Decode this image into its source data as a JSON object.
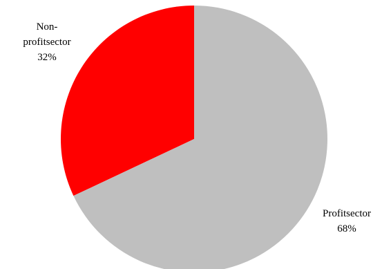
{
  "chart_data": {
    "type": "pie",
    "title": "",
    "slices": [
      {
        "name": "Non-profitsector",
        "label_lines": [
          "Non-",
          "profitsector"
        ],
        "value": 32,
        "value_label": "32%",
        "color": "#ff0000"
      },
      {
        "name": "Profitsector",
        "label_lines": [
          "Profitsector"
        ],
        "value": 68,
        "value_label": "68%",
        "color": "#bfbfbf"
      }
    ]
  }
}
